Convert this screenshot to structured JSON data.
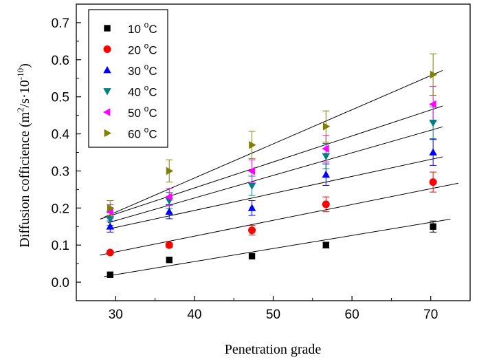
{
  "chart_data": {
    "type": "scatter",
    "xlabel": "Penetration grade",
    "ylabel_main": "Diffusion cofficience (m",
    "ylabel_sup1": "2",
    "ylabel_mid": "/s·10",
    "ylabel_sup2": "-10",
    "ylabel_end": ")",
    "xlim": [
      25,
      75
    ],
    "ylim": [
      -0.05,
      0.75
    ],
    "xticks": [
      "30",
      "40",
      "50",
      "60",
      "70"
    ],
    "xtick_values": [
      30,
      40,
      50,
      60,
      70
    ],
    "yticks": [
      "0.0",
      "0.1",
      "0.2",
      "0.3",
      "0.4",
      "0.5",
      "0.6",
      "0.7"
    ],
    "ytick_values": [
      0.0,
      0.1,
      0.2,
      0.3,
      0.4,
      0.5,
      0.6,
      0.7
    ],
    "legend_position": "top-left",
    "grid": false,
    "x": [
      29.3,
      36.8,
      47.3,
      56.7,
      70.3
    ],
    "series": [
      {
        "name_value": "10",
        "name_unit": "C",
        "marker": "square",
        "color": "#000000",
        "values": [
          0.02,
          0.06,
          0.07,
          0.1,
          0.15
        ],
        "errors": [
          0.0,
          0.0,
          0.0,
          0.008,
          0.015
        ],
        "fit": [
          [
            28.5,
            0.015
          ],
          [
            72.5,
            0.17
          ]
        ]
      },
      {
        "name_value": "20",
        "name_unit": "C",
        "marker": "circle",
        "color": "#ff0000",
        "values": [
          0.08,
          0.1,
          0.14,
          0.21,
          0.27
        ],
        "errors": [
          0.004,
          0.006,
          0.013,
          0.02,
          0.027
        ],
        "fit": [
          [
            28.0,
            0.073
          ],
          [
            73.5,
            0.267
          ]
        ]
      },
      {
        "name_value": "30",
        "name_unit": "C",
        "marker": "triangle-up",
        "color": "#0000ff",
        "values": [
          0.15,
          0.19,
          0.2,
          0.29,
          0.35
        ],
        "errors": [
          0.015,
          0.019,
          0.02,
          0.029,
          0.035
        ],
        "fit": [
          [
            29.0,
            0.143
          ],
          [
            71.5,
            0.338
          ]
        ]
      },
      {
        "name_value": "40",
        "name_unit": "C",
        "marker": "triangle-down",
        "color": "#008080",
        "values": [
          0.17,
          0.22,
          0.26,
          0.34,
          0.43
        ],
        "errors": [
          0.017,
          0.022,
          0.026,
          0.034,
          0.043
        ],
        "fit": [
          [
            29.0,
            0.16
          ],
          [
            71.5,
            0.419
          ]
        ]
      },
      {
        "name_value": "50",
        "name_unit": "C",
        "marker": "triangle-left",
        "color": "#ff00ff",
        "values": [
          0.19,
          0.23,
          0.3,
          0.36,
          0.48
        ],
        "errors": [
          0.019,
          0.023,
          0.03,
          0.036,
          0.048
        ],
        "fit": [
          [
            28.0,
            0.17
          ],
          [
            71.5,
            0.475
          ]
        ]
      },
      {
        "name_value": "60",
        "name_unit": "C",
        "marker": "triangle-right",
        "color": "#808000",
        "values": [
          0.2,
          0.3,
          0.37,
          0.42,
          0.56
        ],
        "errors": [
          0.02,
          0.03,
          0.037,
          0.042,
          0.056
        ],
        "fit": [
          [
            28.5,
            0.175
          ],
          [
            71.5,
            0.571
          ]
        ]
      }
    ]
  }
}
